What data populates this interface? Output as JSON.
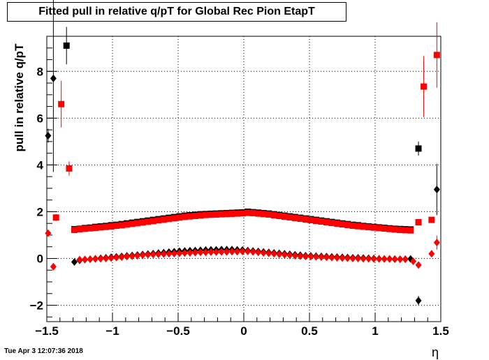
{
  "title": "Fitted pull in relative q/pT for Global Rec Pion EtapT",
  "timestamp": "Tue Apr  3 12:07:36 2018",
  "chart_data": {
    "type": "scatter",
    "title": "Fitted pull in relative q/pT for Global Rec Pion EtapT",
    "xlabel": "η",
    "ylabel": "pull in relative q/pT",
    "xlim": [
      -1.5,
      1.5
    ],
    "ylim": [
      -2.7,
      9.5
    ],
    "xticks": [
      -1.5,
      -1,
      -0.5,
      0,
      0.5,
      1,
      1.5
    ],
    "xtick_labels": [
      "−1.5",
      "−1",
      "−0.5",
      "0",
      "0.5",
      "1",
      "1.5"
    ],
    "yticks": [
      -2,
      0,
      2,
      4,
      6,
      8
    ],
    "ytick_labels": [
      "−2",
      "0",
      "2",
      "4",
      "6",
      "8"
    ],
    "grid": true,
    "colors": {
      "black": "#000000",
      "red": "#ff0000"
    },
    "series": [
      {
        "marker": "square",
        "color": "#000000",
        "x": [
          -1.35,
          -1.29,
          -1.25,
          -1.21,
          -1.17,
          -1.13,
          -1.09,
          -1.05,
          -1.01,
          -0.97,
          -0.93,
          -0.89,
          -0.85,
          -0.81,
          -0.77,
          -0.73,
          -0.69,
          -0.65,
          -0.61,
          -0.57,
          -0.53,
          -0.49,
          -0.45,
          -0.41,
          -0.37,
          -0.33,
          -0.29,
          -0.25,
          -0.21,
          -0.17,
          -0.13,
          -0.09,
          -0.05,
          -0.01,
          0.03,
          0.07,
          0.11,
          0.15,
          0.19,
          0.23,
          0.27,
          0.31,
          0.35,
          0.39,
          0.43,
          0.47,
          0.51,
          0.55,
          0.59,
          0.63,
          0.67,
          0.71,
          0.75,
          0.79,
          0.83,
          0.87,
          0.91,
          0.95,
          0.99,
          1.03,
          1.07,
          1.11,
          1.15,
          1.19,
          1.23,
          1.27,
          1.33
        ],
        "y": [
          9.1,
          1.25,
          1.27,
          1.3,
          1.32,
          1.35,
          1.37,
          1.39,
          1.42,
          1.44,
          1.47,
          1.5,
          1.53,
          1.56,
          1.59,
          1.62,
          1.65,
          1.68,
          1.71,
          1.74,
          1.77,
          1.8,
          1.83,
          1.85,
          1.87,
          1.89,
          1.9,
          1.91,
          1.92,
          1.93,
          1.94,
          1.95,
          1.96,
          1.97,
          2.0,
          1.98,
          1.96,
          1.94,
          1.92,
          1.89,
          1.86,
          1.83,
          1.8,
          1.77,
          1.74,
          1.71,
          1.68,
          1.65,
          1.62,
          1.59,
          1.56,
          1.53,
          1.5,
          1.47,
          1.44,
          1.42,
          1.39,
          1.37,
          1.35,
          1.33,
          1.31,
          1.29,
          1.27,
          1.26,
          1.25,
          1.24,
          4.7
        ],
        "yerr": [
          0.8,
          0.02,
          0.02,
          0.02,
          0.02,
          0.02,
          0.02,
          0.02,
          0.02,
          0.02,
          0.02,
          0.02,
          0.02,
          0.02,
          0.02,
          0.02,
          0.02,
          0.02,
          0.02,
          0.02,
          0.02,
          0.02,
          0.02,
          0.02,
          0.02,
          0.02,
          0.02,
          0.02,
          0.02,
          0.02,
          0.02,
          0.02,
          0.02,
          0.02,
          0.02,
          0.02,
          0.02,
          0.02,
          0.02,
          0.02,
          0.02,
          0.02,
          0.02,
          0.02,
          0.02,
          0.02,
          0.02,
          0.02,
          0.02,
          0.02,
          0.02,
          0.02,
          0.02,
          0.02,
          0.02,
          0.02,
          0.02,
          0.02,
          0.02,
          0.02,
          0.02,
          0.02,
          0.02,
          0.02,
          0.02,
          0.02,
          0.3
        ]
      },
      {
        "marker": "diamond",
        "color": "#000000",
        "x": [
          -1.49,
          -1.45,
          -1.29,
          -1.25,
          -1.21,
          -1.17,
          -1.13,
          -1.09,
          -1.05,
          -1.01,
          -0.97,
          -0.93,
          -0.89,
          -0.85,
          -0.81,
          -0.77,
          -0.73,
          -0.69,
          -0.65,
          -0.61,
          -0.57,
          -0.53,
          -0.49,
          -0.45,
          -0.41,
          -0.37,
          -0.33,
          -0.29,
          -0.25,
          -0.21,
          -0.17,
          -0.13,
          -0.09,
          -0.05,
          -0.01,
          0.03,
          0.07,
          0.11,
          0.15,
          0.19,
          0.23,
          0.27,
          0.31,
          0.35,
          0.39,
          0.43,
          0.47,
          0.51,
          0.55,
          0.59,
          0.63,
          0.67,
          0.71,
          0.75,
          0.79,
          0.83,
          0.87,
          0.91,
          0.95,
          0.99,
          1.03,
          1.07,
          1.11,
          1.15,
          1.19,
          1.23,
          1.27,
          1.33,
          1.47
        ],
        "y": [
          5.25,
          7.7,
          -0.15,
          -0.08,
          -0.05,
          -0.03,
          -0.01,
          0.01,
          0.03,
          0.05,
          0.07,
          0.09,
          0.11,
          0.13,
          0.15,
          0.17,
          0.19,
          0.21,
          0.23,
          0.25,
          0.27,
          0.29,
          0.31,
          0.32,
          0.33,
          0.34,
          0.35,
          0.36,
          0.37,
          0.37,
          0.38,
          0.38,
          0.38,
          0.37,
          0.36,
          0.34,
          0.32,
          0.3,
          0.28,
          0.26,
          0.24,
          0.22,
          0.2,
          0.18,
          0.16,
          0.14,
          0.12,
          0.11,
          0.1,
          0.09,
          0.08,
          0.07,
          0.06,
          0.05,
          0.04,
          0.03,
          0.03,
          0.02,
          0.01,
          0.0,
          -0.01,
          -0.02,
          -0.02,
          -0.03,
          -0.03,
          -0.03,
          -0.02,
          -1.8,
          2.95
        ],
        "yerr": [
          0.3,
          4.0,
          0.02,
          0.02,
          0.02,
          0.02,
          0.02,
          0.02,
          0.02,
          0.02,
          0.02,
          0.02,
          0.02,
          0.02,
          0.02,
          0.02,
          0.02,
          0.02,
          0.02,
          0.02,
          0.02,
          0.02,
          0.02,
          0.02,
          0.02,
          0.02,
          0.02,
          0.02,
          0.02,
          0.02,
          0.02,
          0.02,
          0.02,
          0.02,
          0.02,
          0.02,
          0.02,
          0.02,
          0.02,
          0.02,
          0.02,
          0.02,
          0.02,
          0.02,
          0.02,
          0.02,
          0.02,
          0.02,
          0.02,
          0.02,
          0.02,
          0.02,
          0.02,
          0.02,
          0.02,
          0.02,
          0.02,
          0.02,
          0.02,
          0.02,
          0.02,
          0.02,
          0.02,
          0.02,
          0.02,
          0.02,
          0.02,
          0.2,
          1.1
        ]
      },
      {
        "marker": "square",
        "color": "#ff0000",
        "x": [
          -1.43,
          -1.39,
          -1.33,
          -1.29,
          -1.25,
          -1.21,
          -1.17,
          -1.13,
          -1.09,
          -1.05,
          -1.01,
          -0.97,
          -0.93,
          -0.89,
          -0.85,
          -0.81,
          -0.77,
          -0.73,
          -0.69,
          -0.65,
          -0.61,
          -0.57,
          -0.53,
          -0.49,
          -0.45,
          -0.41,
          -0.37,
          -0.33,
          -0.29,
          -0.25,
          -0.21,
          -0.17,
          -0.13,
          -0.09,
          -0.05,
          -0.01,
          0.03,
          0.07,
          0.11,
          0.15,
          0.19,
          0.23,
          0.27,
          0.31,
          0.35,
          0.39,
          0.43,
          0.47,
          0.51,
          0.55,
          0.59,
          0.63,
          0.67,
          0.71,
          0.75,
          0.79,
          0.83,
          0.87,
          0.91,
          0.95,
          0.99,
          1.03,
          1.07,
          1.11,
          1.15,
          1.19,
          1.23,
          1.27,
          1.33,
          1.37,
          1.43,
          1.47
        ],
        "y": [
          1.75,
          6.6,
          3.85,
          1.22,
          1.25,
          1.27,
          1.29,
          1.31,
          1.33,
          1.35,
          1.37,
          1.4,
          1.42,
          1.45,
          1.48,
          1.51,
          1.54,
          1.57,
          1.6,
          1.63,
          1.66,
          1.69,
          1.72,
          1.75,
          1.78,
          1.8,
          1.82,
          1.84,
          1.86,
          1.87,
          1.88,
          1.89,
          1.9,
          1.91,
          1.92,
          1.93,
          1.95,
          1.94,
          1.92,
          1.9,
          1.88,
          1.85,
          1.82,
          1.79,
          1.76,
          1.73,
          1.7,
          1.67,
          1.64,
          1.61,
          1.58,
          1.55,
          1.52,
          1.49,
          1.46,
          1.43,
          1.4,
          1.38,
          1.36,
          1.34,
          1.32,
          1.3,
          1.28,
          1.26,
          1.24,
          1.22,
          1.21,
          1.2,
          1.55,
          7.35,
          1.65,
          8.7
        ],
        "yerr": [
          0.15,
          1.0,
          0.3,
          0.02,
          0.02,
          0.02,
          0.02,
          0.02,
          0.02,
          0.02,
          0.02,
          0.02,
          0.02,
          0.02,
          0.02,
          0.02,
          0.02,
          0.02,
          0.02,
          0.02,
          0.02,
          0.02,
          0.02,
          0.02,
          0.02,
          0.02,
          0.02,
          0.02,
          0.02,
          0.02,
          0.02,
          0.02,
          0.02,
          0.02,
          0.02,
          0.02,
          0.02,
          0.02,
          0.02,
          0.02,
          0.02,
          0.02,
          0.02,
          0.02,
          0.02,
          0.02,
          0.02,
          0.02,
          0.02,
          0.02,
          0.02,
          0.02,
          0.02,
          0.02,
          0.02,
          0.02,
          0.02,
          0.02,
          0.02,
          0.02,
          0.02,
          0.02,
          0.02,
          0.02,
          0.02,
          0.02,
          0.02,
          0.02,
          0.1,
          1.3,
          0.1,
          1.4
        ]
      },
      {
        "marker": "diamond",
        "color": "#ff0000",
        "x": [
          -1.49,
          -1.45,
          -1.25,
          -1.21,
          -1.17,
          -1.13,
          -1.09,
          -1.05,
          -1.01,
          -0.97,
          -0.93,
          -0.89,
          -0.85,
          -0.81,
          -0.77,
          -0.73,
          -0.69,
          -0.65,
          -0.61,
          -0.57,
          -0.53,
          -0.49,
          -0.45,
          -0.41,
          -0.37,
          -0.33,
          -0.29,
          -0.25,
          -0.21,
          -0.17,
          -0.13,
          -0.09,
          -0.05,
          -0.01,
          0.03,
          0.07,
          0.11,
          0.15,
          0.19,
          0.23,
          0.27,
          0.31,
          0.35,
          0.39,
          0.43,
          0.47,
          0.51,
          0.55,
          0.59,
          0.63,
          0.67,
          0.71,
          0.75,
          0.79,
          0.83,
          0.87,
          0.91,
          0.95,
          0.99,
          1.03,
          1.07,
          1.11,
          1.15,
          1.19,
          1.23,
          1.29,
          1.33,
          1.43,
          1.47
        ],
        "y": [
          1.08,
          -0.35,
          -0.05,
          -0.04,
          -0.03,
          -0.02,
          -0.01,
          0.0,
          0.02,
          0.04,
          0.06,
          0.08,
          0.1,
          0.12,
          0.14,
          0.16,
          0.17,
          0.18,
          0.19,
          0.2,
          0.21,
          0.22,
          0.23,
          0.24,
          0.25,
          0.26,
          0.26,
          0.27,
          0.27,
          0.28,
          0.28,
          0.29,
          0.29,
          0.3,
          0.3,
          0.28,
          0.26,
          0.24,
          0.22,
          0.2,
          0.18,
          0.16,
          0.14,
          0.12,
          0.1,
          0.09,
          0.08,
          0.07,
          0.06,
          0.05,
          0.04,
          0.03,
          0.02,
          0.01,
          0.0,
          0.0,
          -0.01,
          -0.01,
          -0.02,
          -0.02,
          -0.02,
          -0.02,
          -0.02,
          -0.03,
          -0.03,
          -0.12,
          -0.28,
          0.2,
          0.68
        ],
        "yerr": [
          0.1,
          0.05,
          0.02,
          0.02,
          0.02,
          0.02,
          0.02,
          0.02,
          0.02,
          0.02,
          0.02,
          0.02,
          0.02,
          0.02,
          0.02,
          0.02,
          0.02,
          0.02,
          0.02,
          0.02,
          0.02,
          0.02,
          0.02,
          0.02,
          0.02,
          0.02,
          0.02,
          0.02,
          0.02,
          0.02,
          0.02,
          0.02,
          0.02,
          0.02,
          0.02,
          0.02,
          0.02,
          0.02,
          0.02,
          0.02,
          0.02,
          0.02,
          0.02,
          0.02,
          0.02,
          0.02,
          0.02,
          0.02,
          0.02,
          0.02,
          0.02,
          0.02,
          0.02,
          0.02,
          0.02,
          0.02,
          0.02,
          0.02,
          0.02,
          0.02,
          0.02,
          0.02,
          0.02,
          0.02,
          0.02,
          0.05,
          0.05,
          0.05,
          0.3
        ]
      }
    ]
  }
}
